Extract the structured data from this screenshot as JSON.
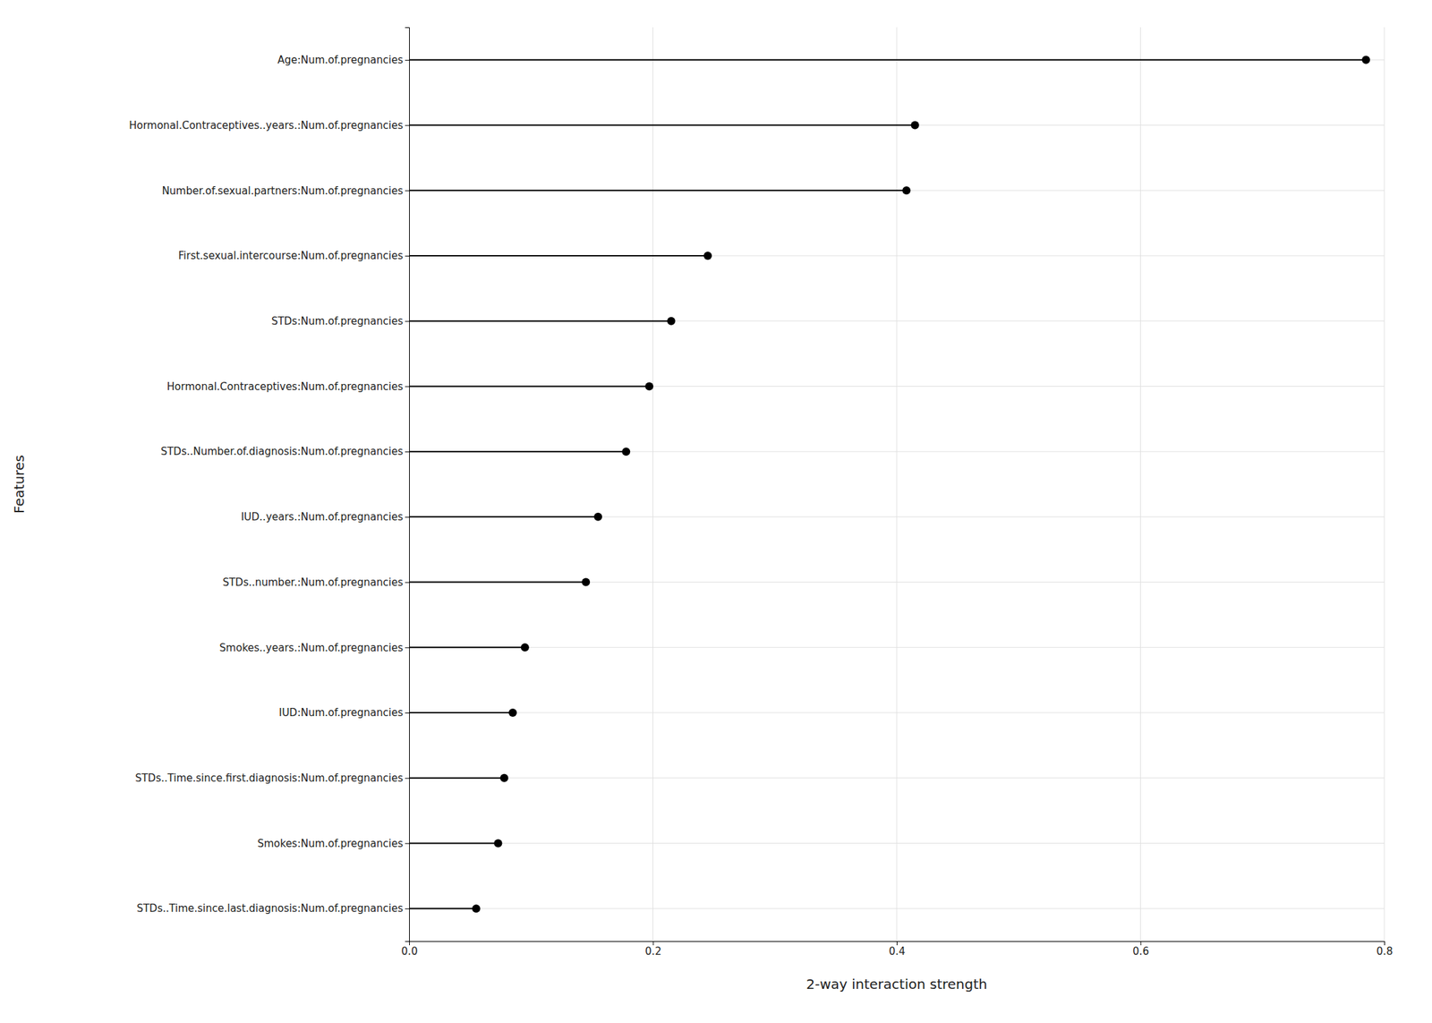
{
  "chart_data": {
    "type": "lollipop",
    "orientation": "horizontal",
    "categories": [
      "STDs..Time.since.last.diagnosis:Num.of.pregnancies",
      "Smokes:Num.of.pregnancies",
      "STDs..Time.since.first.diagnosis:Num.of.pregnancies",
      "IUD:Num.of.pregnancies",
      "Smokes..years.:Num.of.pregnancies",
      "STDs..number.:Num.of.pregnancies",
      "IUD..years.:Num.of.pregnancies",
      "STDs..Number.of.diagnosis:Num.of.pregnancies",
      "Hormonal.Contraceptives:Num.of.pregnancies",
      "STDs:Num.of.pregnancies",
      "First.sexual.intercourse:Num.of.pregnancies",
      "Number.of.sexual.partners:Num.of.pregnancies",
      "Hormonal.Contraceptives..years.:Num.of.pregnancies",
      "Age:Num.of.pregnancies"
    ],
    "values": [
      0.055,
      0.073,
      0.078,
      0.085,
      0.095,
      0.145,
      0.155,
      0.178,
      0.197,
      0.215,
      0.245,
      0.408,
      0.415,
      0.785
    ],
    "color": "#000000",
    "x_label": "2-way interaction strength",
    "y_label": "Features",
    "xlim": [
      0.0,
      0.8
    ],
    "xticks": [
      {
        "value": 0.0,
        "label": "0.0"
      },
      0.2,
      0.4,
      0.6,
      0.8
    ],
    "grid": true
  }
}
